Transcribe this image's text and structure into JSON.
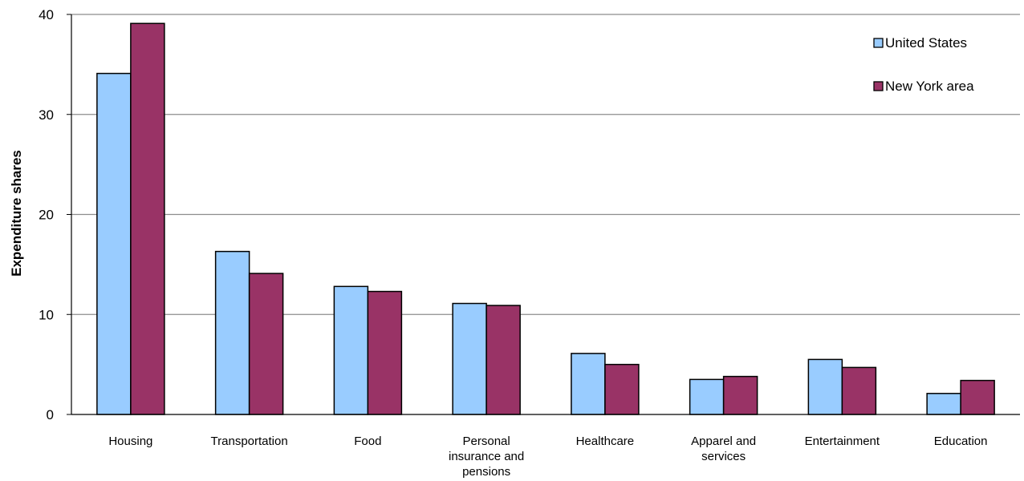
{
  "chart_data": {
    "type": "bar",
    "categories": [
      "Housing",
      "Transportation",
      "Food",
      "Personal insurance and pensions",
      "Healthcare",
      "Apparel and services",
      "Entertainment",
      "Education"
    ],
    "series": [
      {
        "name": "United States",
        "color": "#99ccff",
        "values": [
          34.1,
          16.3,
          12.8,
          11.1,
          6.1,
          3.5,
          5.5,
          2.1
        ]
      },
      {
        "name": "New York area",
        "color": "#993366",
        "values": [
          39.1,
          14.1,
          12.3,
          10.9,
          5.0,
          3.8,
          4.7,
          3.4
        ]
      }
    ],
    "ylabel": "Expenditure shares",
    "xlabel": "",
    "ylim": [
      0,
      40
    ],
    "yticks": [
      0,
      10,
      20,
      30,
      40
    ],
    "grid": true,
    "legend_position": "top-right"
  }
}
